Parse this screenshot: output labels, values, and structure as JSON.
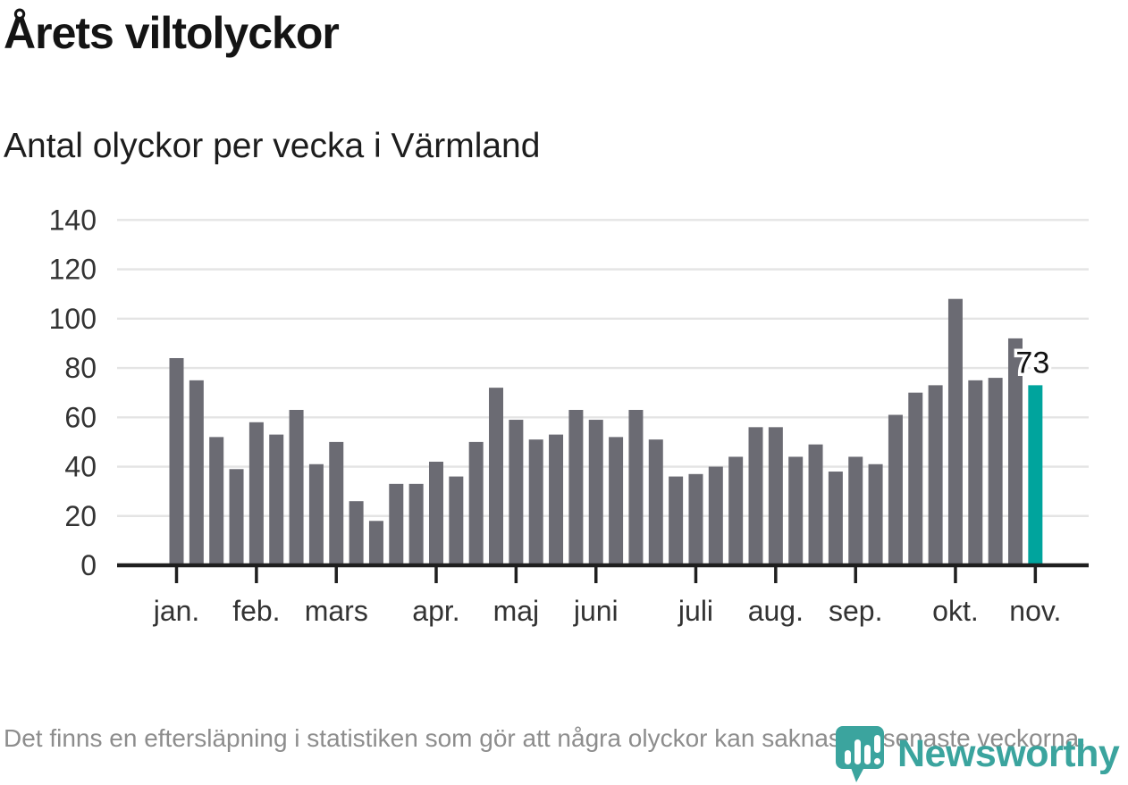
{
  "header": {
    "title": "Årets viltolyckor",
    "subtitle": "Antal olyckor per vecka i Värmland"
  },
  "chart_data": {
    "type": "bar",
    "title": "Årets viltolyckor",
    "subtitle": "Antal olyckor per vecka i Värmland",
    "x_unit": "vecka",
    "weeks": [
      1,
      2,
      3,
      4,
      5,
      6,
      7,
      8,
      9,
      10,
      11,
      12,
      13,
      14,
      15,
      16,
      17,
      18,
      19,
      20,
      21,
      22,
      23,
      24,
      25,
      26,
      27,
      28,
      29,
      30,
      31,
      32,
      33,
      34,
      35,
      36,
      37,
      38,
      39,
      40,
      41,
      42,
      43,
      44
    ],
    "values": [
      84,
      75,
      52,
      39,
      58,
      53,
      63,
      41,
      50,
      26,
      18,
      33,
      33,
      42,
      36,
      50,
      72,
      59,
      51,
      53,
      63,
      59,
      52,
      63,
      51,
      36,
      37,
      40,
      44,
      56,
      56,
      44,
      49,
      38,
      44,
      41,
      61,
      70,
      73,
      108,
      75,
      76,
      92,
      73
    ],
    "ylim": [
      0,
      140
    ],
    "yticks": [
      0,
      20,
      40,
      60,
      80,
      100,
      120,
      140
    ],
    "grid": true,
    "legend": null,
    "bar_color": "#6b6b73",
    "highlight_color": "#00a49d",
    "highlighted_index": 43,
    "highlight_label": "73",
    "month_ticks": [
      {
        "week": 1,
        "label": "jan."
      },
      {
        "week": 5,
        "label": "feb."
      },
      {
        "week": 9,
        "label": "mars"
      },
      {
        "week": 14,
        "label": "apr."
      },
      {
        "week": 18,
        "label": "maj"
      },
      {
        "week": 22,
        "label": "juni"
      },
      {
        "week": 27,
        "label": "juli"
      },
      {
        "week": 31,
        "label": "aug."
      },
      {
        "week": 35,
        "label": "sep."
      },
      {
        "week": 40,
        "label": "okt."
      },
      {
        "week": 44,
        "label": "nov."
      }
    ]
  },
  "footer": {
    "note": "Det finns en eftersläpning i statistiken som gör att några olyckor kan saknas de senaste veckorna.",
    "brand": "Newsworthy"
  },
  "colors": {
    "accent_teal": "#00a49d",
    "bar_gray": "#6b6b73",
    "brand_teal": "#3ba49e",
    "gridline": "#e4e4e4",
    "axis": "#1f1f1f",
    "tick_label": "#333333",
    "note_gray": "#8d8d8d"
  }
}
